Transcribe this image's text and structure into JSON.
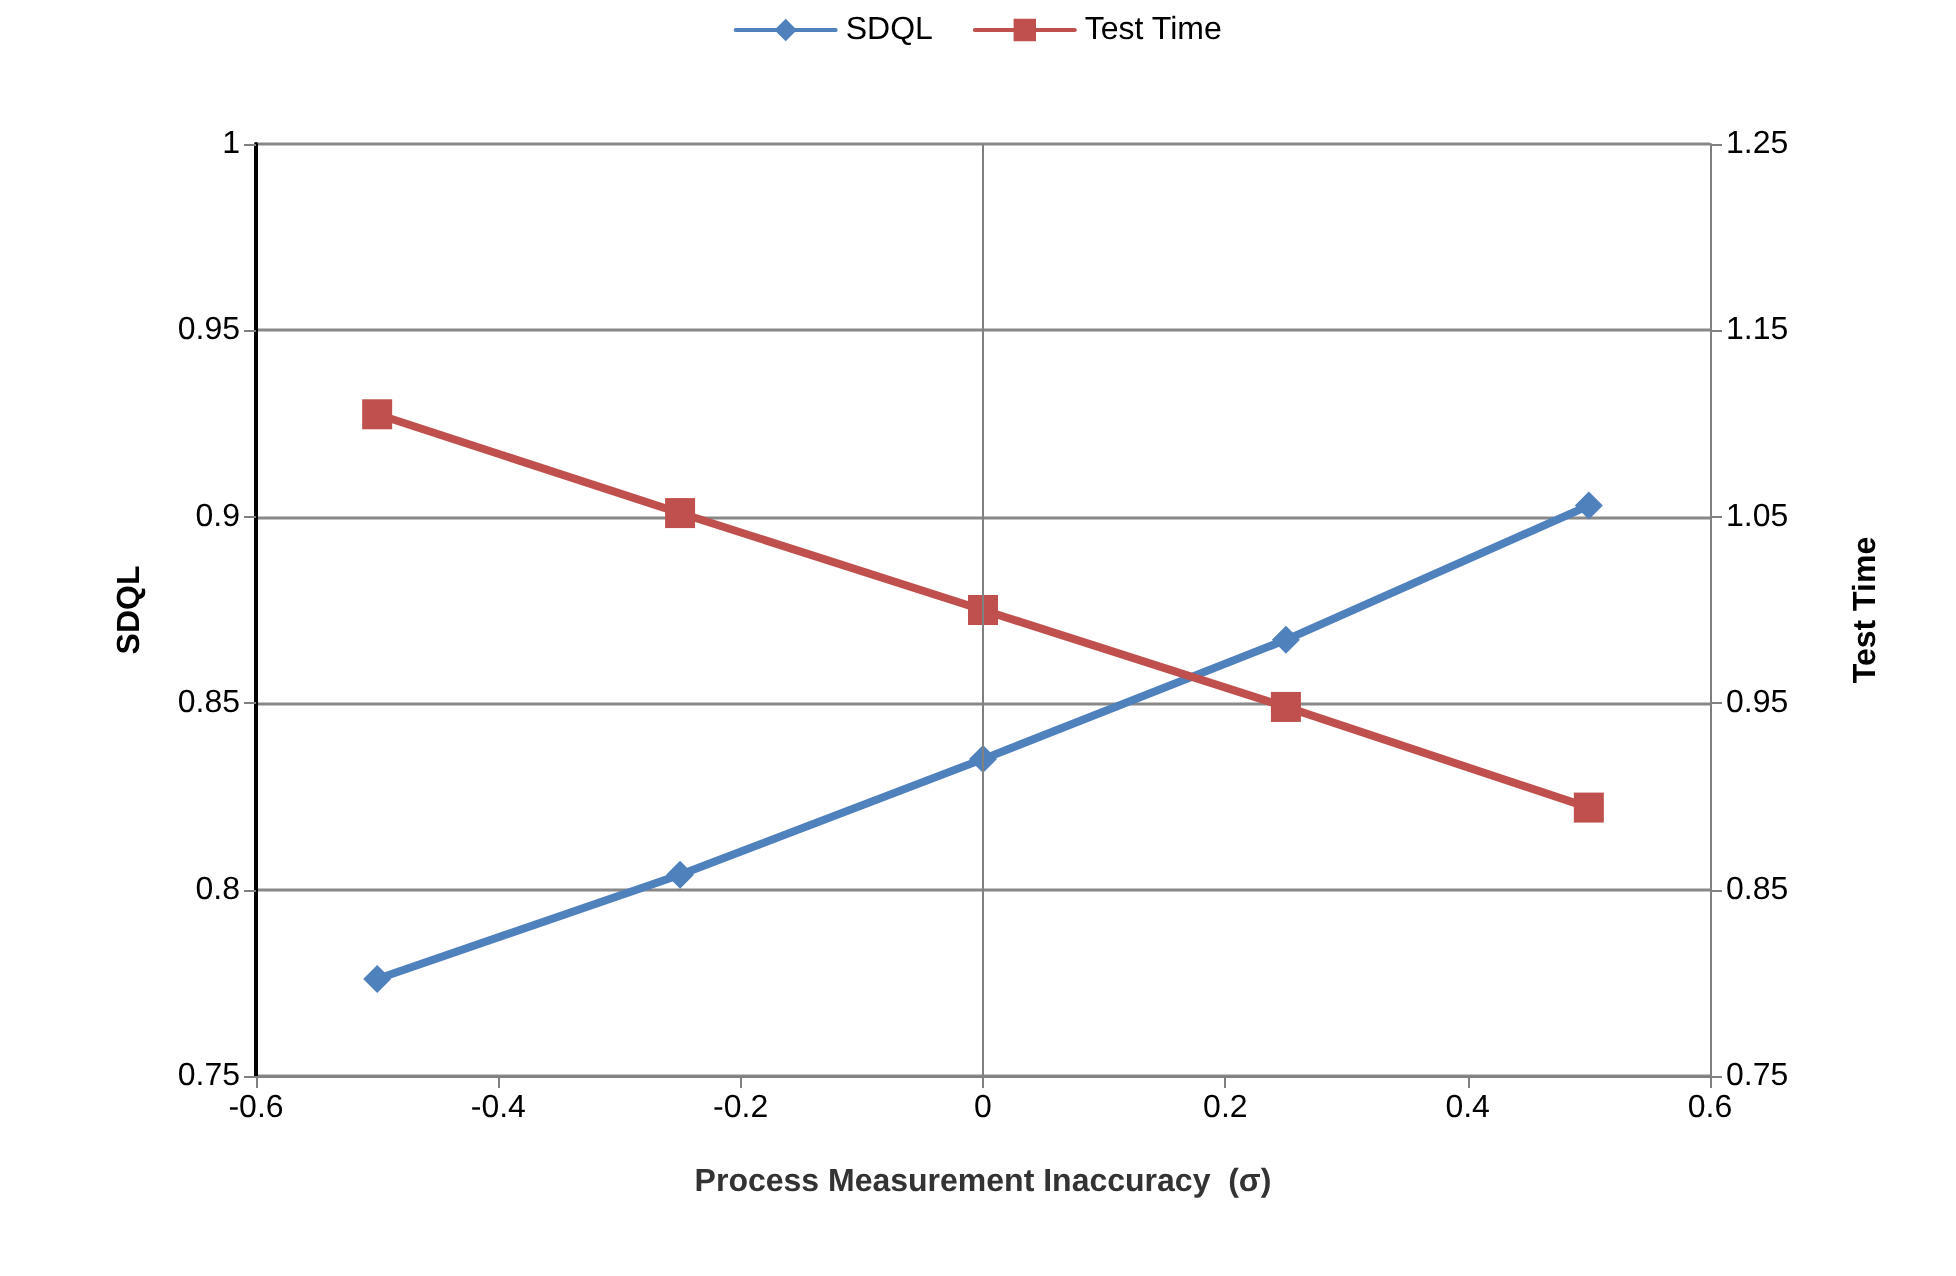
{
  "chart_data": {
    "type": "line",
    "xlabel": "Process Measurement Inaccuracy  (σ)",
    "ylabel": "SDQL",
    "y2label": "Test Time",
    "x": [
      -0.5,
      -0.25,
      0,
      0.25,
      0.5
    ],
    "series": [
      {
        "name": "SDQL",
        "color": "#4f81bd",
        "marker": "diamond",
        "values": [
          0.776,
          0.804,
          0.835,
          0.867,
          0.903
        ]
      },
      {
        "name": "Test Time",
        "color": "#c0504d",
        "marker": "square",
        "axis": "y2",
        "values": [
          1.105,
          1.052,
          1.0,
          0.948,
          0.894
        ]
      }
    ],
    "xlim": [
      -0.6,
      0.6
    ],
    "xticks": [
      -0.6,
      -0.4,
      -0.2,
      0,
      0.2,
      0.4,
      0.6
    ],
    "ylim": [
      0.75,
      1
    ],
    "yticks": [
      0.75,
      0.8,
      0.85,
      0.9,
      0.95,
      1
    ],
    "y2lim": [
      0.75,
      1.25
    ],
    "y2ticks": [
      0.75,
      0.85,
      0.95,
      1.05,
      1.15,
      1.25
    ],
    "ref_lines": [
      {
        "axis": "x",
        "value": 0,
        "color": "#808080"
      }
    ],
    "grid": "y",
    "legend": "top",
    "line_style": "solid"
  }
}
